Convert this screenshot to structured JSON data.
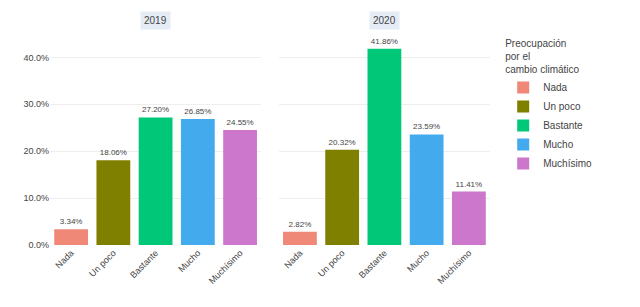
{
  "chart_data": [
    {
      "type": "bar",
      "title": "2019",
      "categories": [
        "Nada",
        "Un poco",
        "Bastante",
        "Mucho",
        "Muchísimo"
      ],
      "values": [
        3.34,
        18.06,
        27.2,
        26.85,
        24.55
      ],
      "value_labels": [
        "3.34%",
        "18.06%",
        "27.20%",
        "26.85%",
        "24.55%"
      ],
      "data_labels": true,
      "colors": [
        "#F08878",
        "#808000",
        "#00C878",
        "#44AAEE",
        "#CC77CC"
      ],
      "ylim": [
        0,
        45
      ],
      "yticks": [
        {
          "value": 0.0,
          "label": "0.0%"
        },
        {
          "value": 10.0,
          "label": "10.0%"
        },
        {
          "value": 20.0,
          "label": "20.0%"
        },
        {
          "value": 30.0,
          "label": "30.0%"
        },
        {
          "value": 40.0,
          "label": "40.0%"
        }
      ],
      "grid": true,
      "legend": "right",
      "legend_title": "Preocupación\npor el\ncambio climático"
    },
    {
      "type": "bar",
      "title": "2020",
      "categories": [
        "Nada",
        "Un poco",
        "Bastante",
        "Mucho",
        "Muchísimo"
      ],
      "values": [
        2.82,
        20.32,
        41.86,
        23.59,
        11.41
      ],
      "value_labels": [
        "2.82%",
        "20.32%",
        "41.86%",
        "23.59%",
        "11.41%"
      ],
      "data_labels": true,
      "colors": [
        "#F08878",
        "#808000",
        "#00C878",
        "#44AAEE",
        "#CC77CC"
      ],
      "ylim": [
        0,
        45
      ],
      "yticks": [
        {
          "value": 0.0,
          "label": "0.0%"
        },
        {
          "value": 10.0,
          "label": "10.0%"
        },
        {
          "value": 20.0,
          "label": "20.0%"
        },
        {
          "value": 30.0,
          "label": "30.0%"
        },
        {
          "value": 40.0,
          "label": "40.0%"
        }
      ],
      "grid": true,
      "tick_labels": "x"
    }
  ]
}
